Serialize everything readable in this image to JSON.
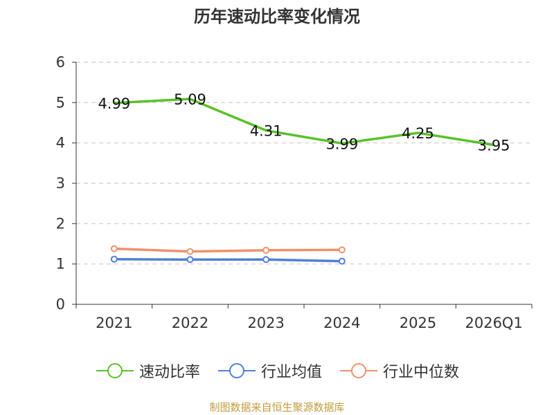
{
  "chart_data": {
    "type": "line",
    "title": "历年速动比率变化情况",
    "categories": [
      "2021",
      "2022",
      "2023",
      "2024",
      "2025",
      "2026Q1"
    ],
    "ylim": [
      0,
      6
    ],
    "yticks": [
      "0",
      "1",
      "2",
      "3",
      "4",
      "5",
      "6"
    ],
    "grid": true,
    "legend_position": "bottom",
    "series": [
      {
        "name": "速动比率",
        "color": "#5ac129",
        "values": [
          4.99,
          5.09,
          4.31,
          3.99,
          4.25,
          3.95
        ],
        "labels": [
          "4.99",
          "5.09",
          "4.31",
          "3.99",
          "4.25",
          "3.95"
        ]
      },
      {
        "name": "行业均值",
        "color": "#4f7fd8",
        "values": [
          1.12,
          1.11,
          1.11,
          1.07,
          null,
          null
        ]
      },
      {
        "name": "行业中位数",
        "color": "#f0916a",
        "values": [
          1.38,
          1.31,
          1.34,
          1.35,
          null,
          null
        ]
      }
    ]
  },
  "source": "制图数据来自恒生聚源数据库"
}
